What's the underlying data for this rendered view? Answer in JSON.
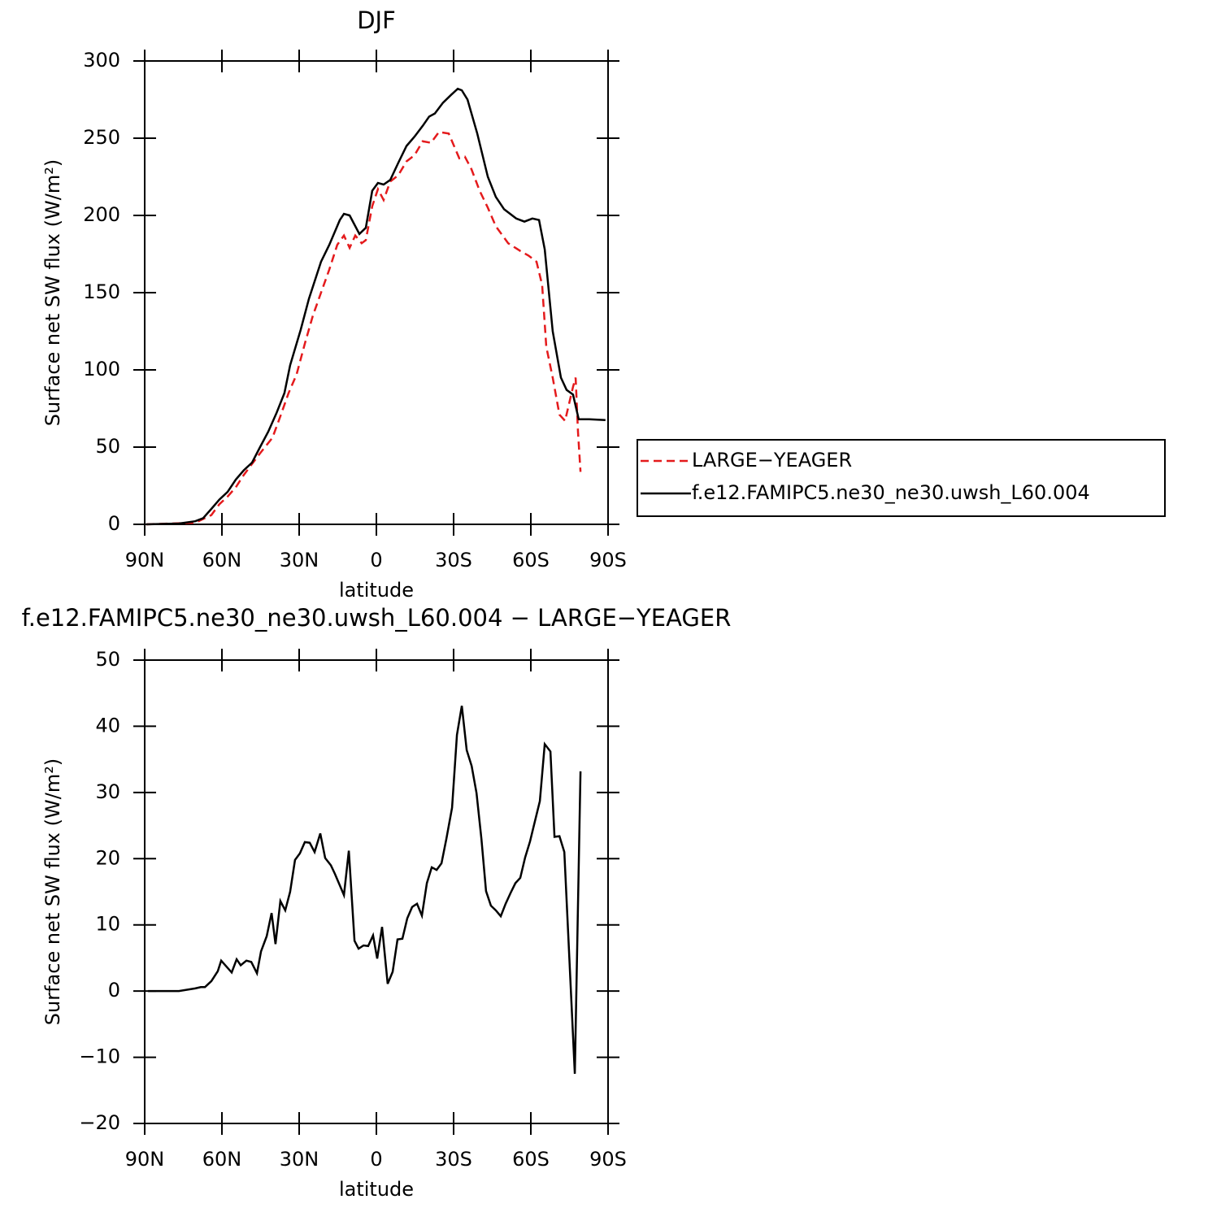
{
  "chart_data": [
    {
      "type": "line",
      "title": "DJF",
      "xlabel": "latitude",
      "ylabel": "Surface net SW flux (W/m²)",
      "xlim": [
        90,
        -90
      ],
      "xticks": [
        {
          "value": 90,
          "label": "90N"
        },
        {
          "value": 60,
          "label": "60N"
        },
        {
          "value": 30,
          "label": "30N"
        },
        0,
        {
          "value": -30,
          "label": "30S"
        },
        {
          "value": -60,
          "label": "60S"
        },
        {
          "value": -90,
          "label": "90S"
        }
      ],
      "ylim": [
        0,
        300
      ],
      "yticks": [
        0,
        50,
        100,
        150,
        200,
        250,
        300
      ],
      "legend": "right",
      "series": [
        {
          "name": "LARGE−YEAGER",
          "color": "#e41a1c",
          "linestyle": "dashed",
          "x": [
            89.4,
            70.4,
            64.1,
            61.0,
            57.8,
            54.6,
            51.5,
            45.2,
            40.4,
            37.3,
            34.1,
            31.0,
            27.8,
            24.7,
            21.5,
            18.3,
            15.2,
            12.6,
            10.4,
            8.2,
            5.7,
            4.1,
            1.6,
            -0.6,
            -2.8,
            -5.4,
            -8.5,
            -11.7,
            -14.8,
            -18.0,
            -21.2,
            -24.3,
            -28.1,
            -32.2,
            -34.4,
            -36.9,
            -40.1,
            -43.3,
            -46.4,
            -51.2,
            -55.9,
            -59.1,
            -62.2,
            -64.4,
            -66.0,
            -68.5,
            -71.1,
            -73.3,
            -76.4,
            -77.4,
            -78.3,
            -79.3
          ],
          "values": [
            0,
            1,
            6,
            13,
            18,
            24,
            32,
            46,
            56,
            70,
            85,
            97,
            117,
            135,
            150,
            165,
            181,
            187,
            179,
            187,
            182,
            184,
            206,
            217,
            210,
            222,
            226,
            235,
            239,
            248,
            247,
            254,
            253,
            237,
            238,
            230,
            216,
            205,
            193,
            182,
            177,
            174,
            170,
            155,
            115,
            95,
            71,
            67,
            89,
            95,
            60,
            34
          ]
        },
        {
          "name": "f.e12.FAMIPC5.ne30_ne30.uwsh_L60.004",
          "color": "#000000",
          "linestyle": "solid",
          "x": [
            89.4,
            76.7,
            70.4,
            67.3,
            64.1,
            61.0,
            57.8,
            54.6,
            51.5,
            48.3,
            45.2,
            42.0,
            38.8,
            35.7,
            33.5,
            29.4,
            26.2,
            21.5,
            18.3,
            14.2,
            12.6,
            10.4,
            6.6,
            4.1,
            1.6,
            -0.6,
            -2.8,
            -5.4,
            -8.5,
            -11.7,
            -14.8,
            -18.0,
            -20.5,
            -22.7,
            -25.9,
            -29.0,
            -31.6,
            -33.2,
            -35.4,
            -39.2,
            -43.3,
            -46.4,
            -49.6,
            -54.3,
            -57.5,
            -60.6,
            -63.2,
            -65.4,
            -68.5,
            -71.7,
            -73.9,
            -76.4,
            -78.6,
            -82.7,
            -89.0
          ],
          "values": [
            0,
            0.5,
            2,
            4,
            10,
            16,
            21,
            29,
            35,
            40,
            50,
            60,
            72,
            85,
            103,
            126,
            146,
            170,
            181,
            197,
            201,
            200,
            188,
            192,
            216,
            221,
            220,
            223,
            234,
            245,
            251,
            258,
            264,
            266,
            273,
            278,
            282,
            281,
            275,
            253,
            225,
            212,
            204,
            198,
            196,
            198,
            197,
            178,
            125,
            95,
            87,
            84,
            68,
            68,
            67.5
          ]
        }
      ]
    },
    {
      "type": "line",
      "title": "f.e12.FAMIPC5.ne30_ne30.uwsh_L60.004 − LARGE−YEAGER",
      "xlabel": "latitude",
      "ylabel": "Surface net SW flux (W/m²)",
      "xlim": [
        90,
        -90
      ],
      "xticks": [
        {
          "value": 90,
          "label": "90N"
        },
        {
          "value": 60,
          "label": "60N"
        },
        {
          "value": 30,
          "label": "30N"
        },
        0,
        {
          "value": -30,
          "label": "30S"
        },
        {
          "value": -60,
          "label": "60S"
        },
        {
          "value": -90,
          "label": "90S"
        }
      ],
      "ylim": [
        -20,
        50
      ],
      "yticks": [
        {
          "value": -20,
          "label": "−20"
        },
        {
          "value": -10,
          "label": "−10"
        },
        0,
        10,
        20,
        30,
        40,
        50
      ],
      "series": [
        {
          "color": "#000000",
          "linestyle": "solid",
          "x": [
            88.7,
            76.7,
            70.4,
            68.2,
            66.6,
            64.1,
            61.6,
            60.3,
            56.2,
            54.3,
            52.7,
            50.5,
            48.6,
            46.4,
            44.8,
            42.6,
            40.7,
            39.2,
            37.3,
            35.4,
            33.5,
            31.6,
            29.7,
            27.8,
            25.9,
            24.0,
            21.8,
            19.9,
            17.7,
            16.1,
            12.6,
            10.7,
            8.5,
            6.9,
            5.0,
            3.2,
            1.3,
            -0.3,
            -2.2,
            -4.4,
            -6.3,
            -8.2,
            -10.1,
            -12.0,
            -13.9,
            -15.8,
            -17.7,
            -19.6,
            -21.5,
            -23.4,
            -25.3,
            -27.2,
            -29.4,
            -31.3,
            -33.2,
            -35.1,
            -37.0,
            -38.9,
            -40.8,
            -42.6,
            -44.5,
            -46.4,
            -48.3,
            -50.2,
            -52.1,
            -54.0,
            -55.9,
            -57.8,
            -59.7,
            -61.6,
            -63.5,
            -65.4,
            -67.6,
            -69.2,
            -71.1,
            -73.0,
            -77.1,
            -79.3
          ],
          "values": [
            0,
            0,
            0.4,
            0.6,
            0.6,
            1.5,
            3,
            4.6,
            2.8,
            4.8,
            3.9,
            4.6,
            4.4,
            2.7,
            6,
            8.3,
            11.8,
            7.1,
            13.6,
            12.2,
            15,
            19.8,
            20.8,
            22.5,
            22.4,
            21,
            23.8,
            20.1,
            19,
            17.7,
            14.5,
            21.2,
            7.6,
            6.4,
            6.9,
            6.8,
            8.4,
            4.9,
            9.7,
            1.1,
            2.9,
            7.8,
            7.9,
            11,
            12.7,
            13.2,
            11.4,
            16.3,
            18.7,
            18.3,
            19.3,
            23,
            27.7,
            38.7,
            43.1,
            36.4,
            34,
            29.9,
            23,
            15.1,
            12.9,
            12.2,
            11.3,
            13.2,
            14.8,
            16.3,
            17.1,
            20.2,
            22.6,
            25.7,
            28.7,
            37.3,
            36.2,
            23.3,
            23.4,
            21,
            -12.5,
            33.2
          ]
        }
      ]
    }
  ]
}
